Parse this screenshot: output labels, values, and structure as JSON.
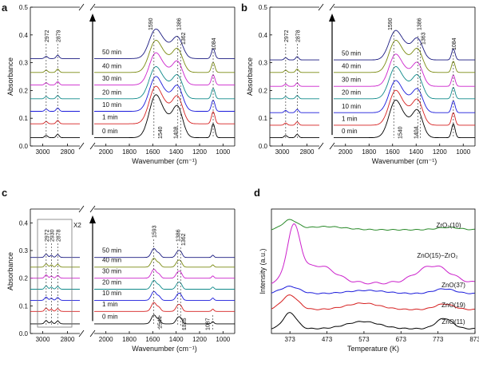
{
  "chart_data": [
    {
      "panel": "a",
      "type": "line",
      "xlabel": "Wavenumber (cm⁻¹)",
      "ylabel": "Absorbance",
      "ylim": [
        0.0,
        0.5
      ],
      "yticks": [
        "0.0",
        "0.1",
        "0.2",
        "0.3",
        "0.4",
        "0.5"
      ],
      "xticks_left": [
        "3000",
        "2800"
      ],
      "xticks_right": [
        "2000",
        "1800",
        "1600",
        "1400",
        "1200",
        "1000"
      ],
      "baselines": [
        0.03,
        0.08,
        0.125,
        0.17,
        0.22,
        0.265,
        0.315
      ],
      "series": [
        {
          "name": "0 min",
          "color": "#000000",
          "peak": 0.16,
          "scale": 1
        },
        {
          "name": "1 min",
          "color": "#d62020",
          "peak": 0.14,
          "scale": 0.87
        },
        {
          "name": "10 min",
          "color": "#1a1adb",
          "peak": 0.13,
          "scale": 0.8
        },
        {
          "name": "20 min",
          "color": "#0f8a8a",
          "peak": 0.12,
          "scale": 0.75
        },
        {
          "name": "30 min",
          "color": "#cc22cc",
          "peak": 0.12,
          "scale": 0.72
        },
        {
          "name": "40 min",
          "color": "#7a8a10",
          "peak": 0.12,
          "scale": 0.72
        },
        {
          "name": "50 min",
          "color": "#1a1a80",
          "peak": 0.11,
          "scale": 0.7
        }
      ],
      "annotations": [
        "2972",
        "2879",
        "1590",
        "1386",
        "1362",
        "1084",
        "1540",
        "1408"
      ]
    },
    {
      "panel": "b",
      "type": "line",
      "xlabel": "Wavenumber (cm⁻¹)",
      "ylabel": "Absorbance",
      "ylim": [
        0.0,
        0.5
      ],
      "yticks": [
        "0.0",
        "0.1",
        "0.2",
        "0.3",
        "0.4",
        "0.5"
      ],
      "xticks_left": [
        "3000",
        "2800"
      ],
      "xticks_right": [
        "2000",
        "1800",
        "1600",
        "1400",
        "1200",
        "1000"
      ],
      "baselines": [
        0.03,
        0.075,
        0.12,
        0.17,
        0.215,
        0.265,
        0.31
      ],
      "series": [
        {
          "name": "0 min",
          "color": "#000000",
          "peak": 0.14,
          "scale": 1
        },
        {
          "name": "1 min",
          "color": "#d62020",
          "peak": 0.13,
          "scale": 0.9
        },
        {
          "name": "10 min",
          "color": "#1a1adb",
          "peak": 0.12,
          "scale": 0.85
        },
        {
          "name": "20 min",
          "color": "#0f8a8a",
          "peak": 0.12,
          "scale": 0.82
        },
        {
          "name": "30 min",
          "color": "#cc22cc",
          "peak": 0.12,
          "scale": 0.8
        },
        {
          "name": "40 min",
          "color": "#7a8a10",
          "peak": 0.12,
          "scale": 0.8
        },
        {
          "name": "50 min",
          "color": "#1a1a80",
          "peak": 0.11,
          "scale": 0.78
        }
      ],
      "annotations": [
        "2972",
        "2878",
        "1590",
        "1386",
        "1363",
        "1084",
        "1540",
        "1404"
      ]
    },
    {
      "panel": "c",
      "type": "line",
      "xlabel": "Wavenumber (cm⁻¹)",
      "ylabel": "Absorbance",
      "ylim": [
        0.0,
        0.45
      ],
      "yticks": [
        "0.0",
        "0.1",
        "0.2",
        "0.3",
        "0.4"
      ],
      "xticks_left": [
        "3000",
        "2800"
      ],
      "xticks_right": [
        "2000",
        "1800",
        "1600",
        "1400",
        "1200",
        "1000"
      ],
      "baselines": [
        0.035,
        0.08,
        0.12,
        0.16,
        0.2,
        0.24,
        0.275
      ],
      "series": [
        {
          "name": "0 min",
          "color": "#000000",
          "peak": 0.04,
          "scale": 1
        },
        {
          "name": "1 min",
          "color": "#d62020",
          "peak": 0.04,
          "scale": 1
        },
        {
          "name": "10 min",
          "color": "#1a1adb",
          "peak": 0.04,
          "scale": 1
        },
        {
          "name": "20 min",
          "color": "#0f8a8a",
          "peak": 0.04,
          "scale": 1
        },
        {
          "name": "30 min",
          "color": "#cc22cc",
          "peak": 0.04,
          "scale": 1
        },
        {
          "name": "40 min",
          "color": "#7a8a10",
          "peak": 0.04,
          "scale": 1
        },
        {
          "name": "50 min",
          "color": "#1a1a80",
          "peak": 0.04,
          "scale": 1
        }
      ],
      "inset_label": "X2",
      "annotations": [
        "2972",
        "2930",
        "2878",
        "1593",
        "1386",
        "1362",
        "1544",
        "1335",
        "1087"
      ]
    },
    {
      "panel": "d",
      "type": "line",
      "xlabel": "Temperature (K)",
      "ylabel": "Intensity (a.u.)",
      "xlim": [
        323,
        873
      ],
      "xticks": [
        "373",
        "473",
        "573",
        "673",
        "773",
        "873"
      ],
      "series": [
        {
          "name": "ZnO(11)",
          "color": "#000000"
        },
        {
          "name": "ZnO(19)",
          "color": "#d62020"
        },
        {
          "name": "ZnO(37)",
          "color": "#1a1adb"
        },
        {
          "name": "ZnO(15)−ZrO₂",
          "color": "#cc22cc"
        },
        {
          "name": "ZrO₂(10)",
          "color": "#2a8a2a"
        }
      ]
    }
  ],
  "labels": {
    "a": "a",
    "b": "b",
    "c": "c",
    "d": "d",
    "zro2_label": "ZrO₂(10)",
    "znozr_label": "ZnO(15)−ZrO₂",
    "zno37": "ZnO(37)",
    "zno19": "ZnO(19)",
    "zno11": "ZnO(11)"
  }
}
